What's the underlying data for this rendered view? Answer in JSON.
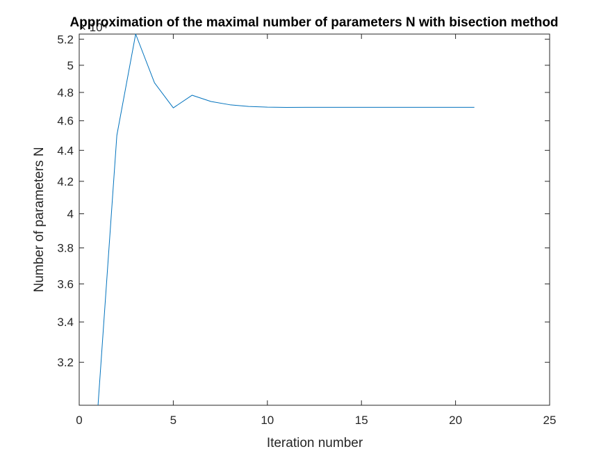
{
  "chart_data": {
    "type": "line",
    "title": "Approximation of the maximal number of parameters N with bisection method",
    "xlabel": "Iteration number",
    "ylabel": "Number of parameters N",
    "y_exponent_label": "× 10⁴",
    "xlim": [
      0,
      25
    ],
    "ylim": [
      3.0,
      5.24
    ],
    "y_scale": "log",
    "x_ticks": [
      0,
      5,
      10,
      15,
      20,
      25
    ],
    "x_tick_labels": [
      "0",
      "5",
      "10",
      "15",
      "20",
      "25"
    ],
    "y_ticks": [
      3.2,
      3.4,
      3.6,
      3.8,
      4.0,
      4.2,
      4.4,
      4.6,
      4.8,
      5.0,
      5.2
    ],
    "y_tick_labels": [
      "3.2",
      "3.4",
      "3.6",
      "3.8",
      "4",
      "4.2",
      "4.4",
      "4.6",
      "4.8",
      "5",
      "5.2"
    ],
    "grid": false,
    "series": [
      {
        "color": "#0072BD",
        "x": [
          1,
          2,
          3,
          4,
          5,
          6,
          7,
          8,
          9,
          10,
          11,
          12,
          13,
          14,
          15,
          16,
          17,
          18,
          19,
          20,
          21
        ],
        "y": [
          3.0,
          4.5,
          5.24,
          4.87,
          4.69,
          4.78,
          4.735,
          4.712,
          4.7,
          4.695,
          4.693,
          4.694,
          4.694,
          4.694,
          4.694,
          4.694,
          4.694,
          4.694,
          4.694,
          4.694,
          4.694
        ]
      }
    ]
  }
}
